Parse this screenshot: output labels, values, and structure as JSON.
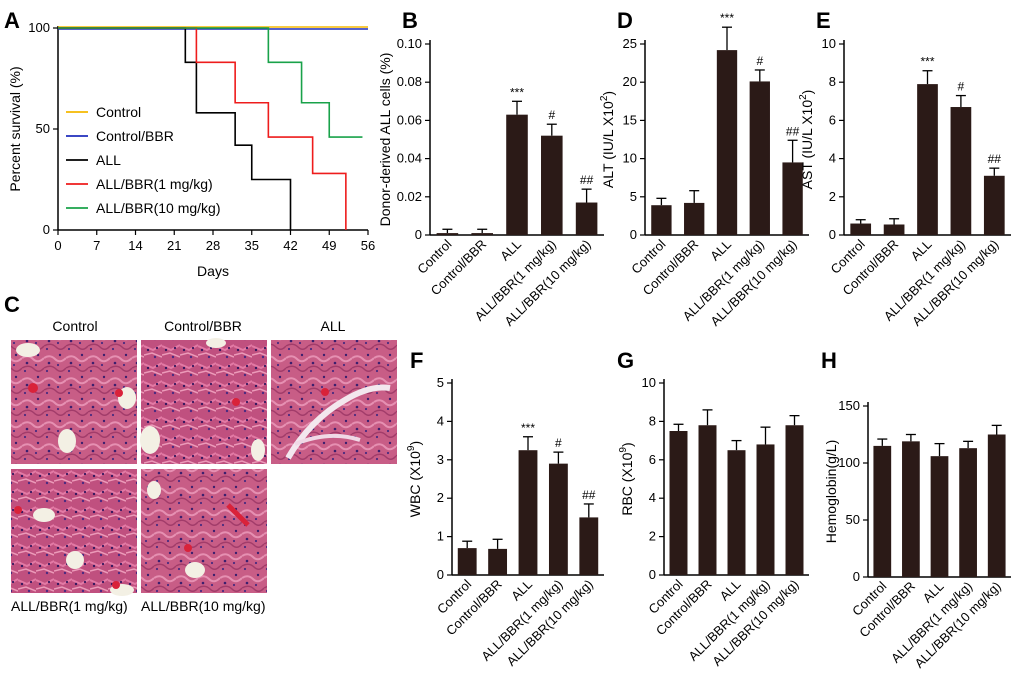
{
  "colors": {
    "control": "#f5b800",
    "control_bbr": "#1f2dbb",
    "all": "#000000",
    "all_bbr1": "#ee1c1c",
    "all_bbr10": "#19a24a",
    "bar": "#2b1a17"
  },
  "panels": {
    "A": "A",
    "B": "B",
    "C": "C",
    "D": "D",
    "E": "E",
    "F": "F",
    "G": "G",
    "H": "H"
  },
  "histology": {
    "labels": [
      "Control",
      "Control/BBR",
      "ALL",
      "ALL/BBR(1 mg/kg)",
      "ALL/BBR(10 mg/kg)"
    ]
  },
  "chart_data": [
    {
      "id": "A",
      "type": "line",
      "xlabel": "Days",
      "ylabel": "Percent survival (%)",
      "xlim": [
        0,
        56
      ],
      "ylim": [
        0,
        100
      ],
      "xticks": [
        0,
        7,
        14,
        21,
        28,
        35,
        42,
        49,
        56
      ],
      "yticks": [
        0,
        50,
        100
      ],
      "legend_position": "bottom-left",
      "series": [
        {
          "name": "Control",
          "color_key": "control",
          "points": [
            [
              0,
              100
            ],
            [
              56,
              100
            ]
          ]
        },
        {
          "name": "Control/BBR",
          "color_key": "control_bbr",
          "points": [
            [
              0,
              100
            ],
            [
              56,
              100
            ]
          ]
        },
        {
          "name": "ALL",
          "color_key": "all",
          "points": [
            [
              0,
              100
            ],
            [
              23,
              100
            ],
            [
              23,
              83
            ],
            [
              25,
              83
            ],
            [
              25,
              58
            ],
            [
              32,
              58
            ],
            [
              32,
              42
            ],
            [
              35,
              42
            ],
            [
              35,
              25
            ],
            [
              42,
              25
            ],
            [
              42,
              0
            ]
          ]
        },
        {
          "name": "ALL/BBR(1 mg/kg)",
          "color_key": "all_bbr1",
          "points": [
            [
              0,
              100
            ],
            [
              25,
              100
            ],
            [
              25,
              83
            ],
            [
              32,
              83
            ],
            [
              32,
              63
            ],
            [
              38,
              63
            ],
            [
              38,
              46
            ],
            [
              46,
              46
            ],
            [
              46,
              28
            ],
            [
              52,
              28
            ],
            [
              52,
              0
            ]
          ]
        },
        {
          "name": "ALL/BBR(10 mg/kg)",
          "color_key": "all_bbr10",
          "points": [
            [
              0,
              100
            ],
            [
              38,
              100
            ],
            [
              38,
              83
            ],
            [
              44,
              83
            ],
            [
              44,
              63
            ],
            [
              49,
              63
            ],
            [
              49,
              46
            ],
            [
              55,
              46
            ]
          ]
        }
      ]
    },
    {
      "id": "B",
      "type": "bar",
      "categories": [
        "Control",
        "Control/BBR",
        "ALL",
        "ALL/BBR(1 mg/kg)",
        "ALL/BBR(10 mg/kg)"
      ],
      "values": [
        0.001,
        0.001,
        0.063,
        0.052,
        0.017
      ],
      "errors": [
        0.002,
        0.002,
        0.007,
        0.006,
        0.007
      ],
      "annotations": [
        "",
        "",
        "***",
        "#",
        "##"
      ],
      "ylabel": "Donor-derived ALL cells (%)",
      "ylim": [
        0,
        0.1
      ],
      "yticks": [
        0,
        0.02,
        0.04,
        0.06,
        0.08,
        0.1
      ],
      "ytick_labels": [
        "0",
        "0.02",
        "0.04",
        "0.06",
        "0.08",
        "0.10"
      ]
    },
    {
      "id": "D",
      "type": "bar",
      "categories": [
        "Control",
        "Control/BBR",
        "ALL",
        "ALL/BBR(1 mg/kg)",
        "ALL/BBR(10 mg/kg)"
      ],
      "values": [
        3.9,
        4.2,
        24.2,
        20.1,
        9.5
      ],
      "errors": [
        0.9,
        1.6,
        3.0,
        1.5,
        2.9
      ],
      "annotations": [
        "",
        "",
        "***",
        "#",
        "##"
      ],
      "ylabel": "ALT (IU/L X10²)",
      "ylim": [
        0,
        25
      ],
      "yticks": [
        0,
        5,
        10,
        15,
        20,
        25
      ],
      "ytick_labels": [
        "0",
        "5",
        "10",
        "15",
        "20",
        "25"
      ]
    },
    {
      "id": "E",
      "type": "bar",
      "categories": [
        "Control",
        "Control/BBR",
        "ALL",
        "ALL/BBR(1 mg/kg)",
        "ALL/BBR(10 mg/kg)"
      ],
      "values": [
        0.6,
        0.55,
        7.9,
        6.7,
        3.1
      ],
      "errors": [
        0.2,
        0.3,
        0.7,
        0.6,
        0.4
      ],
      "annotations": [
        "",
        "",
        "***",
        "#",
        "##"
      ],
      "ylabel": "AST (IU/L X10²)",
      "ylim": [
        0,
        10
      ],
      "yticks": [
        0,
        2,
        4,
        6,
        8,
        10
      ],
      "ytick_labels": [
        "0",
        "2",
        "4",
        "6",
        "8",
        "10"
      ]
    },
    {
      "id": "F",
      "type": "bar",
      "categories": [
        "Control",
        "Control/BBR",
        "ALL",
        "ALL/BBR(1 mg/kg)",
        "ALL/BBR(10 mg/kg)"
      ],
      "values": [
        0.7,
        0.68,
        3.25,
        2.9,
        1.5
      ],
      "errors": [
        0.18,
        0.25,
        0.35,
        0.3,
        0.35
      ],
      "annotations": [
        "",
        "",
        "***",
        "#",
        "##"
      ],
      "ylabel": "WBC (X10⁹)",
      "ylim": [
        0,
        5
      ],
      "yticks": [
        0,
        1,
        2,
        3,
        4,
        5
      ],
      "ytick_labels": [
        "0",
        "1",
        "2",
        "3",
        "4",
        "5"
      ]
    },
    {
      "id": "G",
      "type": "bar",
      "categories": [
        "Control",
        "Control/BBR",
        "ALL",
        "ALL/BBR(1 mg/kg)",
        "ALL/BBR(10 mg/kg)"
      ],
      "values": [
        7.5,
        7.8,
        6.5,
        6.8,
        7.8
      ],
      "errors": [
        0.35,
        0.8,
        0.5,
        0.9,
        0.5
      ],
      "annotations": [
        "",
        "",
        "",
        "",
        ""
      ],
      "ylabel": "RBC (X10⁹)",
      "ylim": [
        0,
        10
      ],
      "yticks": [
        0,
        2,
        4,
        6,
        8,
        10
      ],
      "ytick_labels": [
        "0",
        "2",
        "4",
        "6",
        "8",
        "10"
      ]
    },
    {
      "id": "H",
      "type": "bar",
      "categories": [
        "Control",
        "Control/BBR",
        "ALL",
        "ALL/BBR(1 mg/kg)",
        "ALL/BBR(10 mg/kg)"
      ],
      "values": [
        115,
        119,
        106,
        113,
        125
      ],
      "errors": [
        6,
        6,
        11,
        6,
        8
      ],
      "annotations": [
        "",
        "",
        "",
        "",
        ""
      ],
      "ylabel": "Hemoglobin(g/L)",
      "ylim": [
        0,
        150
      ],
      "yticks": [
        0,
        50,
        100,
        150
      ],
      "ytick_labels": [
        "0",
        "50",
        "100",
        "150"
      ]
    }
  ]
}
